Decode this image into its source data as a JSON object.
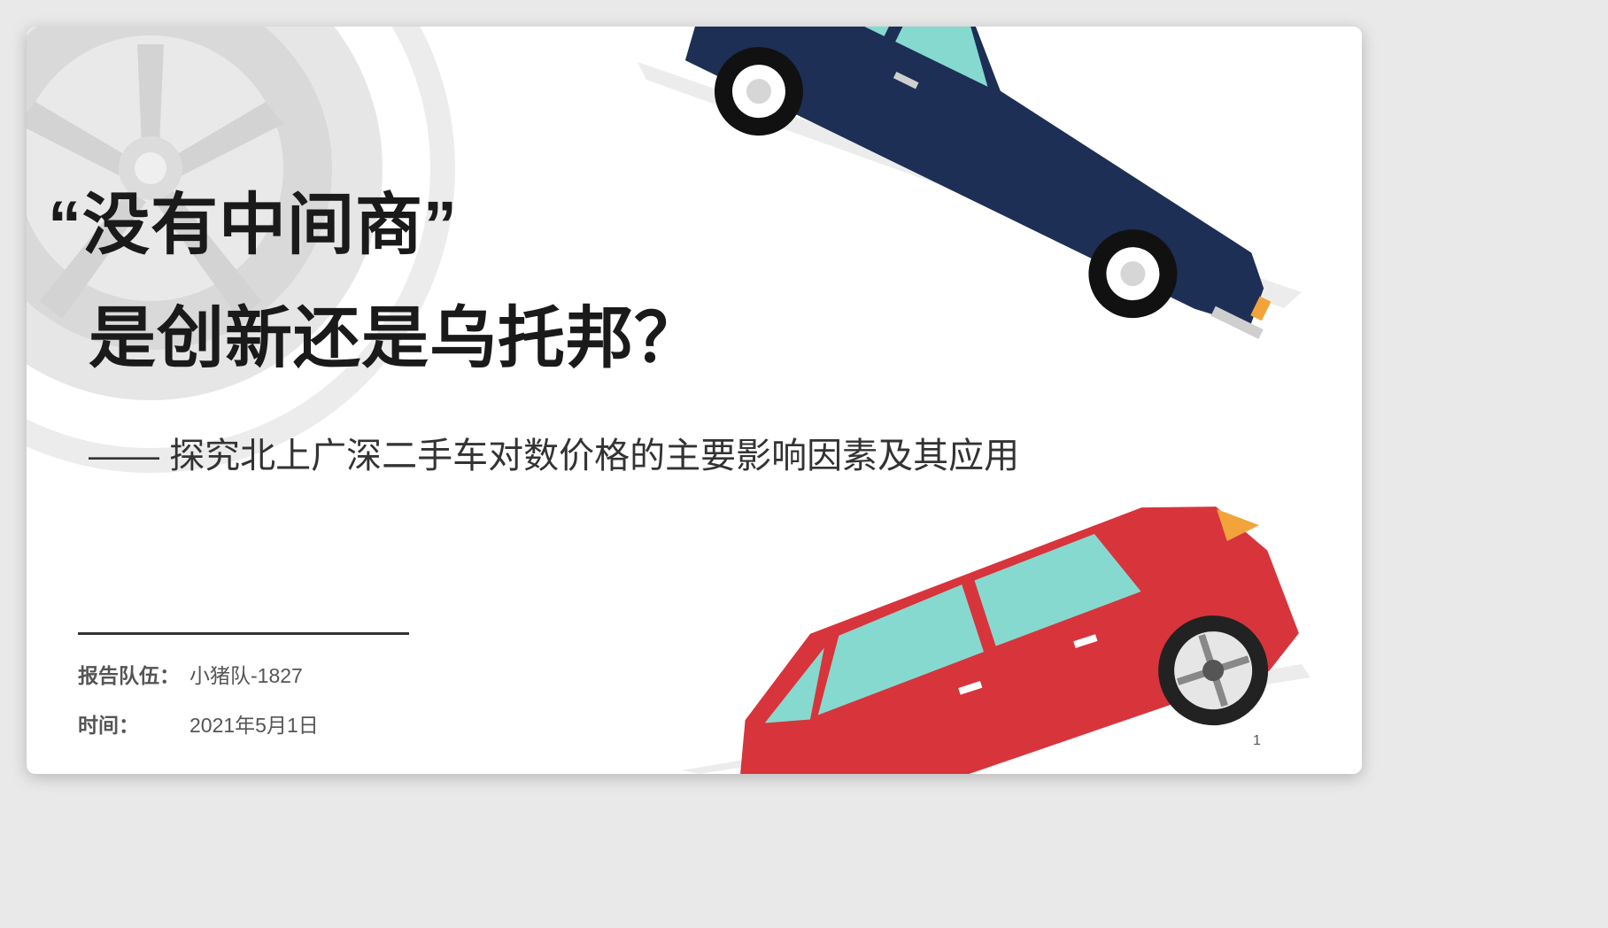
{
  "slide": {
    "title_line1": "“没有中间商”",
    "title_line2": "是创新还是乌托邦？",
    "subtitle": "—— 探究北上广深二手车对数价格的主要影响因素及其应用",
    "team_label": "报告队伍：",
    "team_value": "小猪队-1827",
    "time_label": "时间：",
    "time_value": "2021年5月1日",
    "page_number": "1"
  },
  "colors": {
    "navy_car": "#1d2f55",
    "red_car": "#d8343c",
    "window_glass": "#86d9cf",
    "wheel_bg": "#e4e4e4",
    "accent_orange": "#f2a33a"
  },
  "icons": {
    "background_wheel": "wheel-icon",
    "top_car": "navy-sedan",
    "bottom_car": "red-hatchback"
  }
}
